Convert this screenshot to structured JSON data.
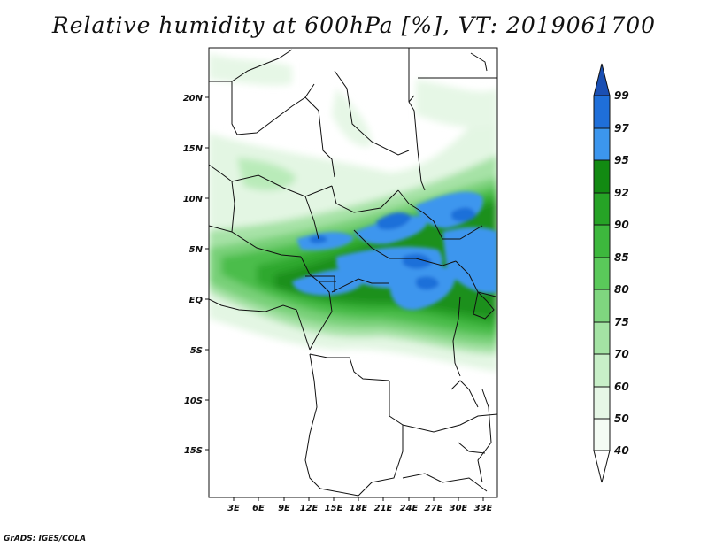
{
  "title": "Relative humidity at 600hPa [%], VT: 2019061700",
  "credit": "GrADS: IGES/COLA",
  "map": {
    "lat_labels": [
      "20N",
      "15N",
      "10N",
      "5N",
      "EQ",
      "5S",
      "10S",
      "15S"
    ],
    "lon_labels": [
      "3E",
      "6E",
      "9E",
      "12E",
      "15E",
      "18E",
      "21E",
      "24E",
      "27E",
      "30E",
      "33E"
    ]
  },
  "colorbar": {
    "levels": [
      "40",
      "50",
      "60",
      "70",
      "75",
      "80",
      "85",
      "90",
      "92",
      "95",
      "97",
      "99"
    ],
    "colors": [
      "#ffffff",
      "#e6f7e6",
      "#c8efc8",
      "#a4e3a4",
      "#7fd67f",
      "#5ac95a",
      "#3db83d",
      "#26a326",
      "#128a12",
      "#3c96ee",
      "#1f6fd9",
      "#1a4fb3"
    ]
  }
}
